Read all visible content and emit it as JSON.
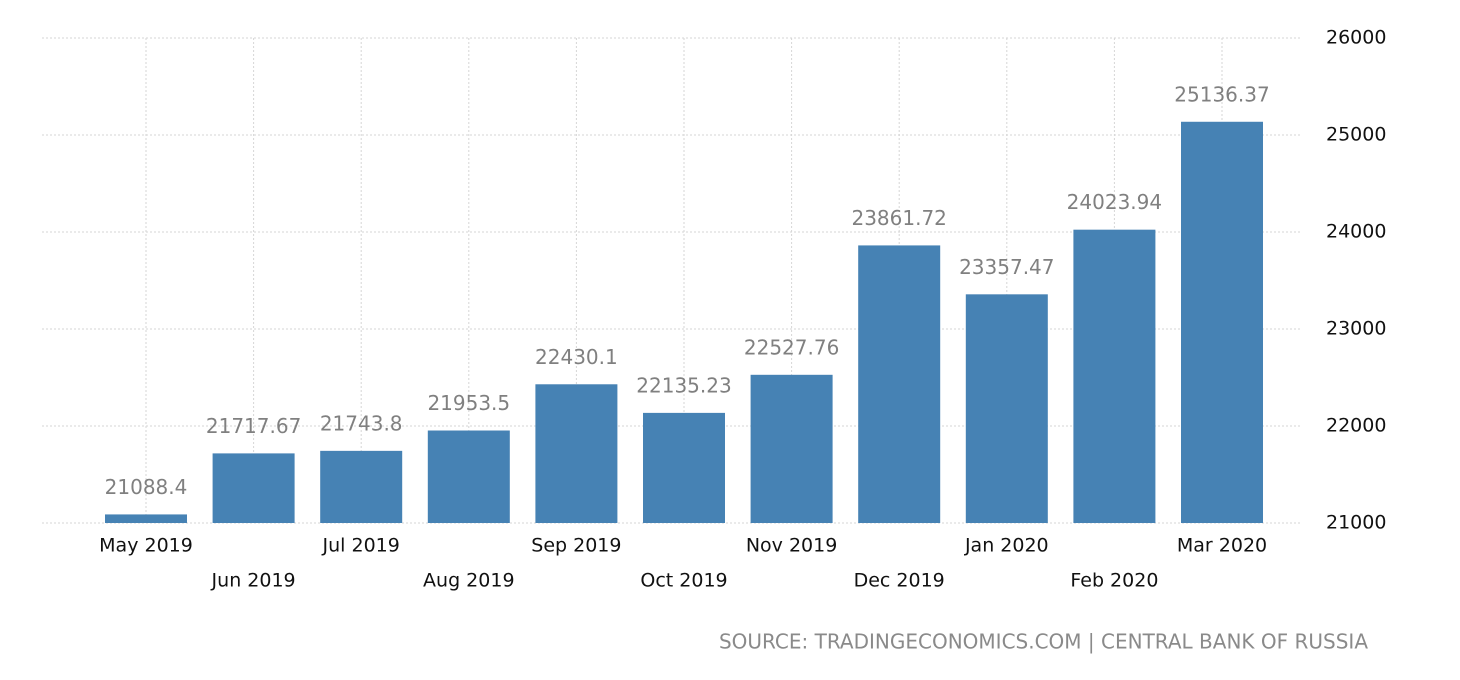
{
  "chart_data": {
    "type": "bar",
    "categories": [
      "May 2019",
      "Jun 2019",
      "Jul 2019",
      "Aug 2019",
      "Sep 2019",
      "Oct 2019",
      "Nov 2019",
      "Dec 2019",
      "Jan 2020",
      "Feb 2020",
      "Mar 2020"
    ],
    "values": [
      21088.4,
      21717.67,
      21743.8,
      21953.5,
      22430.1,
      22135.23,
      22527.76,
      23861.72,
      23357.47,
      24023.94,
      25136.37
    ],
    "color": "#4682b4",
    "ylim": [
      21000,
      26000
    ],
    "yticks": [
      21000,
      22000,
      23000,
      24000,
      25000,
      26000
    ],
    "grid": true,
    "source": "SOURCE: TRADINGECONOMICS.COM | CENTRAL BANK OF RUSSIA"
  }
}
